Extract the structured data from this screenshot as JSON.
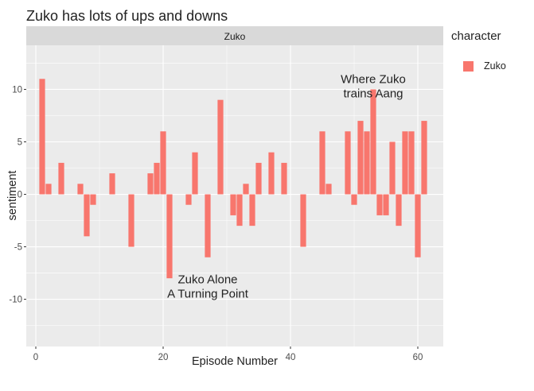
{
  "chart_data": {
    "type": "bar",
    "title": "Zuko has lots of ups and downs",
    "facet": "Zuko",
    "xlabel": "Episode Number",
    "ylabel": "sentiment",
    "xlim": [
      -1.5,
      64
    ],
    "ylim": [
      -14.5,
      14.2
    ],
    "xticks": [
      0,
      20,
      40,
      60
    ],
    "yticks": [
      -10,
      -5,
      0,
      5,
      10
    ],
    "grid": true,
    "legend": {
      "title": "character",
      "position": "right",
      "entries": [
        "Zuko"
      ]
    },
    "bar_color": "#F8766D",
    "series": [
      {
        "name": "Zuko",
        "x": [
          1,
          2,
          4,
          7,
          8,
          9,
          12,
          15,
          18,
          19,
          20,
          21,
          24,
          25,
          27,
          29,
          31,
          32,
          33,
          34,
          35,
          37,
          39,
          42,
          45,
          46,
          49,
          50,
          51,
          52,
          53,
          54,
          55,
          56,
          57,
          58,
          59,
          60,
          61
        ],
        "values": [
          11,
          1,
          3,
          1,
          -4,
          -1,
          2,
          -5,
          2,
          3,
          6,
          -8,
          -1,
          4,
          -6,
          9,
          -2,
          -3,
          1,
          -3,
          3,
          4,
          3,
          -5,
          6,
          1,
          6,
          -1,
          7,
          6,
          10,
          -2,
          -2,
          5,
          -3,
          6,
          6,
          -6,
          7
        ]
      }
    ],
    "annotations": [
      {
        "lines": [
          "Zuko Alone",
          "A Turning Point"
        ],
        "x": 27,
        "y": -8.8
      },
      {
        "lines": [
          "Where Zuko",
          "trains Aang"
        ],
        "x": 53,
        "y": 10.3
      }
    ]
  }
}
